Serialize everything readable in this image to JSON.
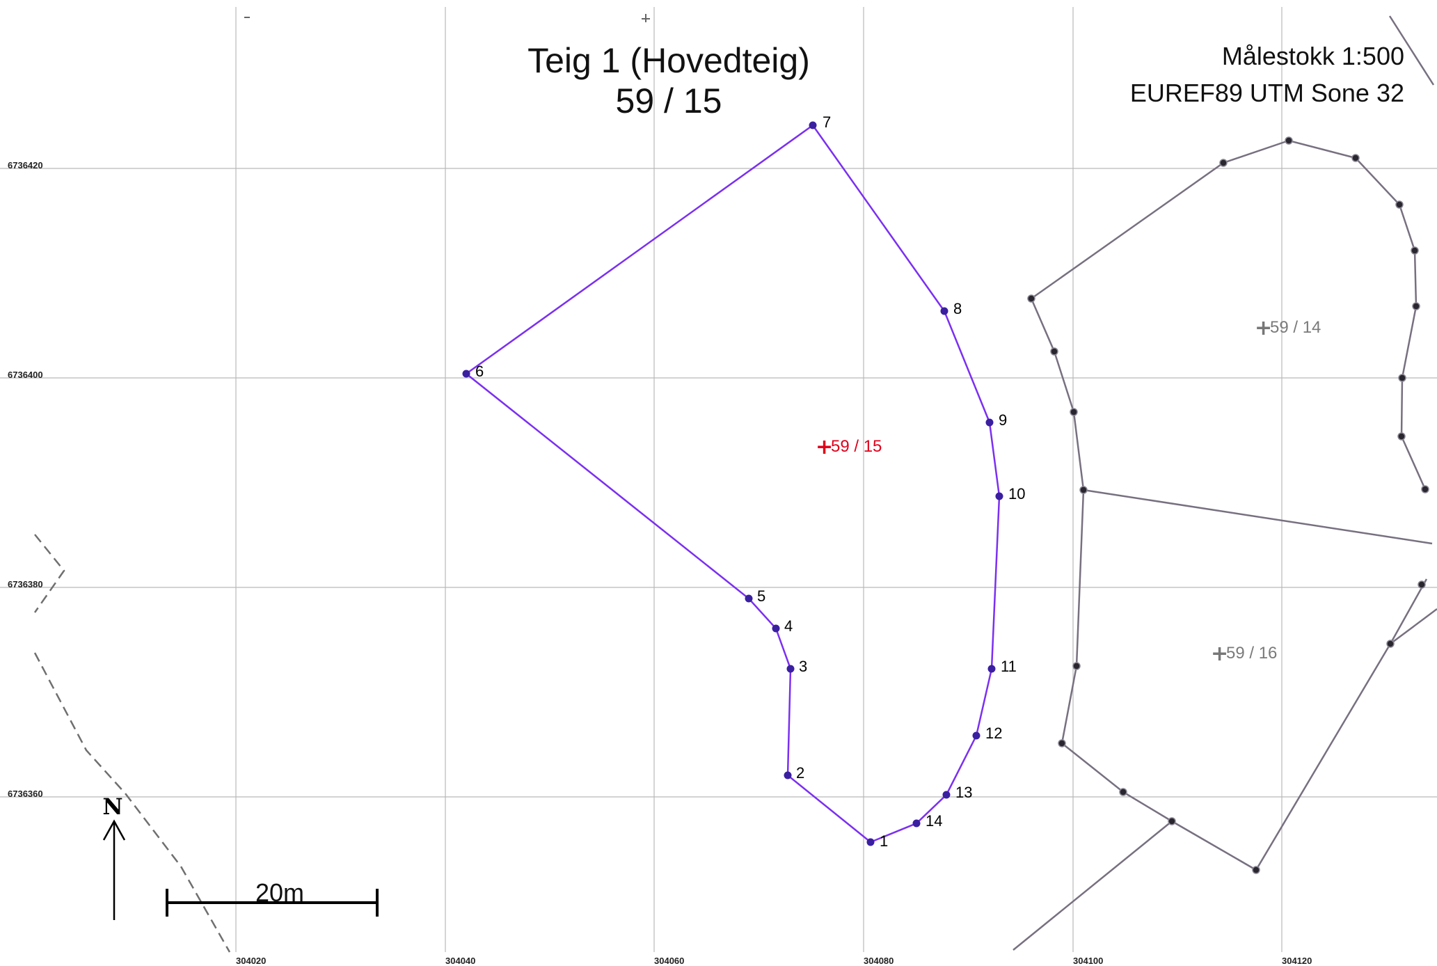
{
  "title": {
    "line1": "Teig 1 (Hovedteig)",
    "line2": "59 / 15"
  },
  "info": {
    "scale": "Målestokk 1:500",
    "projection": "EUREF89 UTM Sone 32"
  },
  "grid": {
    "eastings": [
      "304020",
      "304040",
      "304060",
      "304080",
      "304100",
      "304120"
    ],
    "northings": [
      "6736420",
      "6736400",
      "6736380",
      "6736360"
    ]
  },
  "main_parcel": {
    "id": "59 / 15",
    "color": "#7b2ff2",
    "vertex_color": "#3a1fa0",
    "label_color": "#e0001b",
    "vertices": [
      "1",
      "2",
      "3",
      "4",
      "5",
      "6",
      "7",
      "8",
      "9",
      "10",
      "11",
      "12",
      "13",
      "14"
    ]
  },
  "neighbours": [
    {
      "id": "59 / 14",
      "color": "#777080"
    },
    {
      "id": "59 / 16",
      "color": "#777080"
    }
  ],
  "scalebar": {
    "label": "20m"
  },
  "north_arrow": {
    "label": "N"
  },
  "road_color": "#6f6f6f"
}
